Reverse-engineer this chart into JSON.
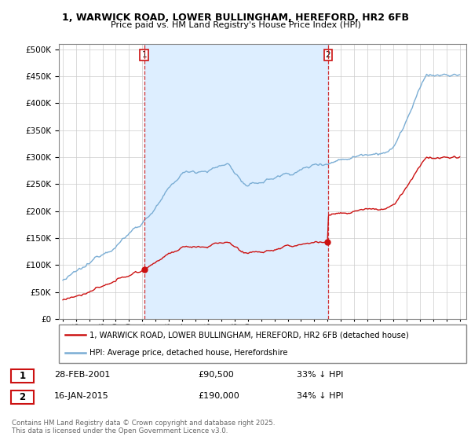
{
  "title_line1": "1, WARWICK ROAD, LOWER BULLINGHAM, HEREFORD, HR2 6FB",
  "title_line2": "Price paid vs. HM Land Registry's House Price Index (HPI)",
  "background_color": "#ffffff",
  "plot_bg_color": "#ffffff",
  "grid_color": "#cccccc",
  "hpi_color": "#7aadd4",
  "price_color": "#cc1111",
  "vline_color": "#cc1111",
  "shade_color": "#ddeeff",
  "sale1_date_num": 2001.15,
  "sale1_price": 90500,
  "sale1_label": "28-FEB-2001",
  "sale1_amount": "£90,500",
  "sale1_hpi": "33% ↓ HPI",
  "sale2_date_num": 2015.04,
  "sale2_price": 190000,
  "sale2_label": "16-JAN-2015",
  "sale2_amount": "£190,000",
  "sale2_hpi": "34% ↓ HPI",
  "legend_line1": "1, WARWICK ROAD, LOWER BULLINGHAM, HEREFORD, HR2 6FB (detached house)",
  "legend_line2": "HPI: Average price, detached house, Herefordshire",
  "footnote": "Contains HM Land Registry data © Crown copyright and database right 2025.\nThis data is licensed under the Open Government Licence v3.0.",
  "ylim_min": 0,
  "ylim_max": 510000,
  "xmin": 1994.7,
  "xmax": 2025.5
}
